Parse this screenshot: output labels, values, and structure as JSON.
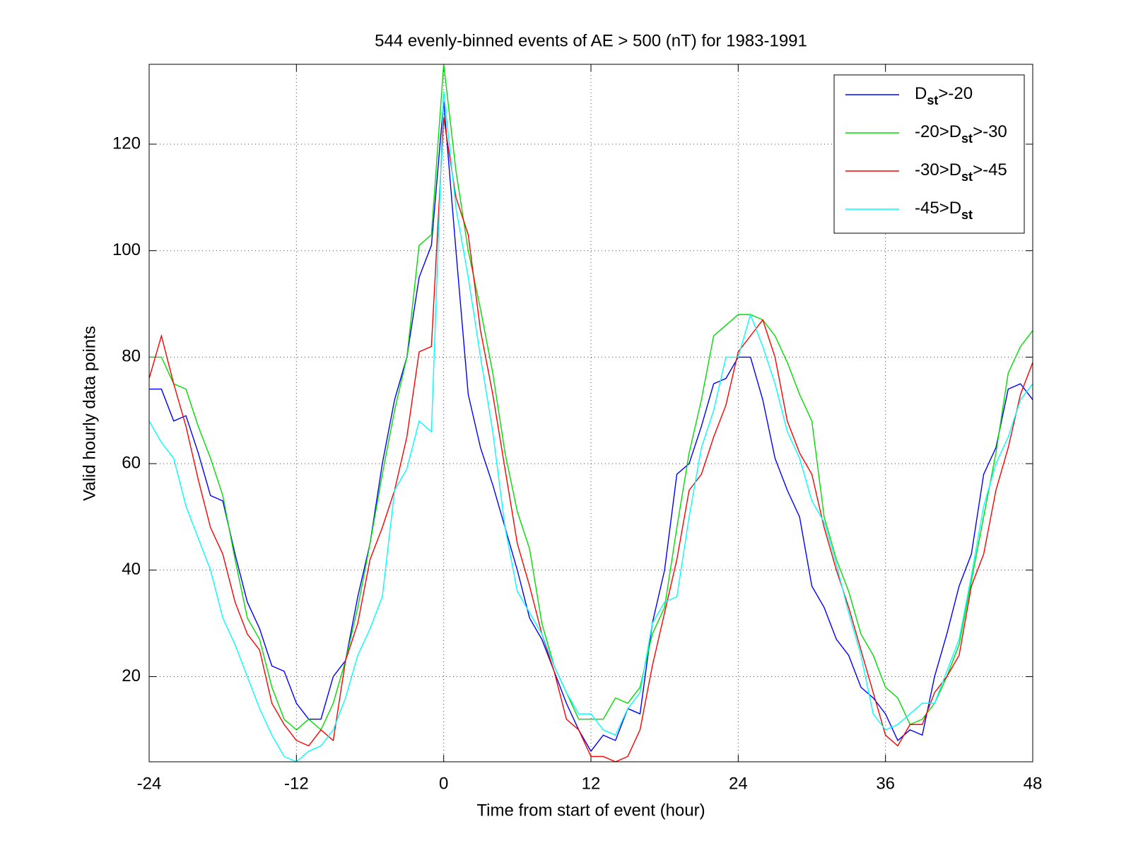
{
  "chart_data": {
    "type": "line",
    "title": "544 evenly-binned events of AE > 500 (nT) for 1983-1991",
    "xlabel": "Time from start of event (hour)",
    "ylabel": "Valid hourly data points",
    "x": [
      -24,
      -23,
      -22,
      -21,
      -20,
      -19,
      -18,
      -17,
      -16,
      -15,
      -14,
      -13,
      -12,
      -11,
      -10,
      -9,
      -8,
      -7,
      -6,
      -5,
      -4,
      -3,
      -2,
      -1,
      0,
      1,
      2,
      3,
      4,
      5,
      6,
      7,
      8,
      9,
      10,
      11,
      12,
      13,
      14,
      15,
      16,
      17,
      18,
      19,
      20,
      21,
      22,
      23,
      24,
      25,
      26,
      27,
      28,
      29,
      30,
      31,
      32,
      33,
      34,
      35,
      36,
      37,
      38,
      39,
      40,
      41,
      42,
      43,
      44,
      45,
      46,
      47,
      48
    ],
    "series": [
      {
        "name": "Dst>-20",
        "color": "#0000ff",
        "values": [
          74,
          74,
          68,
          69,
          62,
          54,
          53,
          43,
          34,
          29,
          22,
          21,
          15,
          12,
          12,
          20,
          23,
          35,
          45,
          60,
          72,
          80,
          95,
          101,
          128,
          100,
          73,
          63,
          56,
          48,
          40,
          31,
          27,
          21,
          15,
          10,
          6,
          9,
          8,
          14,
          13,
          30,
          40,
          58,
          60,
          67,
          75,
          76,
          80,
          80,
          72,
          61,
          55,
          50,
          37,
          33,
          27,
          24,
          18,
          16,
          13,
          8,
          10,
          9,
          20,
          28,
          37,
          43,
          58,
          63,
          74,
          75,
          72
        ]
      },
      {
        "name": "-20>Dst>-30",
        "color": "#00dd00",
        "values": [
          80,
          80,
          75,
          74,
          67,
          61,
          54,
          42,
          31,
          27,
          18,
          12,
          10,
          12,
          10,
          15,
          23,
          33,
          45,
          58,
          70,
          80,
          101,
          103,
          135,
          115,
          100,
          89,
          77,
          62,
          51,
          44,
          30,
          22,
          17,
          12,
          12,
          12,
          16,
          15,
          18,
          28,
          33,
          48,
          62,
          72,
          84,
          86,
          88,
          88,
          87,
          84,
          79,
          73,
          68,
          50,
          42,
          36,
          28,
          24,
          18,
          16,
          11,
          12,
          15,
          20,
          26,
          38,
          50,
          62,
          77,
          82,
          85
        ]
      },
      {
        "name": "-30>Dst>-45",
        "color": "#ff0000",
        "values": [
          76,
          84,
          75,
          67,
          57,
          48,
          43,
          34,
          28,
          25,
          15,
          11,
          8,
          7,
          10,
          8,
          23,
          30,
          42,
          48,
          55,
          65,
          81,
          82,
          125,
          110,
          103,
          85,
          73,
          59,
          45,
          37,
          28,
          21,
          12,
          10,
          5,
          5,
          4,
          5,
          10,
          22,
          32,
          42,
          55,
          58,
          65,
          71,
          81,
          84,
          87,
          80,
          68,
          62,
          58,
          48,
          40,
          33,
          25,
          17,
          9,
          7,
          11,
          11,
          17,
          20,
          24,
          37,
          43,
          55,
          63,
          73,
          79
        ]
      },
      {
        "name": "-45>Dst",
        "color": "#00ffff",
        "values": [
          68,
          64,
          61,
          52,
          46,
          40,
          31,
          26,
          20,
          14,
          9,
          5,
          4,
          6,
          7,
          10,
          16,
          24,
          29,
          35,
          55,
          59,
          68,
          66,
          130,
          108,
          95,
          80,
          66,
          48,
          36,
          32,
          28,
          22,
          17,
          13,
          13,
          10,
          9,
          14,
          17,
          30,
          34,
          35,
          50,
          63,
          70,
          80,
          80,
          88,
          82,
          75,
          66,
          61,
          53,
          49,
          41,
          32,
          24,
          13,
          10,
          11,
          13,
          15,
          15,
          21,
          27,
          39,
          52,
          60,
          65,
          72,
          75
        ]
      }
    ],
    "xlim": [
      -24,
      48
    ],
    "xticks": [
      -24,
      -12,
      0,
      12,
      24,
      36,
      48
    ],
    "ylim": [
      4,
      135
    ],
    "yticks": [
      20,
      40,
      60,
      80,
      100,
      120
    ],
    "grid": true,
    "legend": "upper right"
  }
}
